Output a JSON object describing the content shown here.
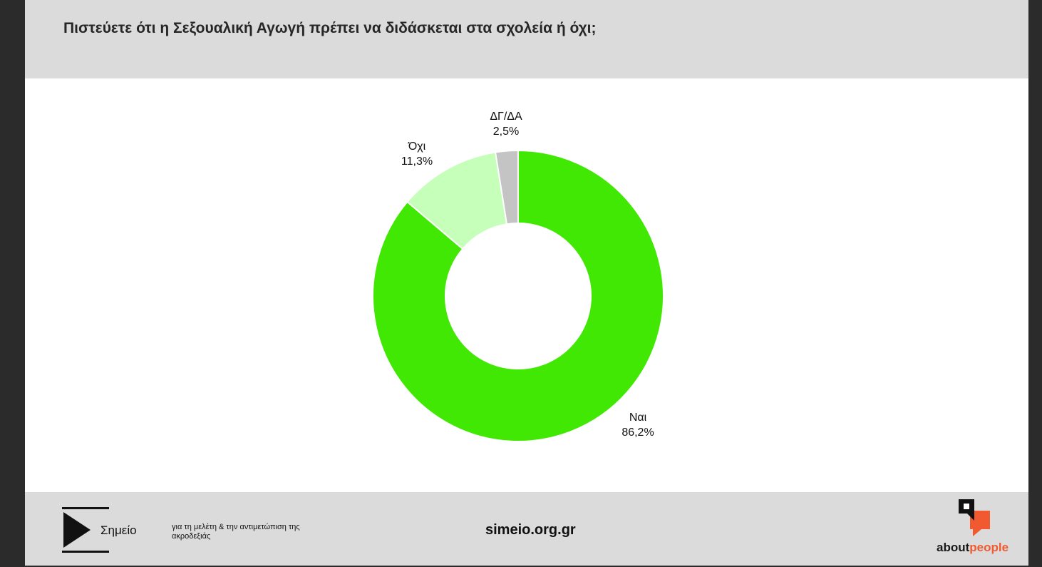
{
  "header": {
    "title": "Πιστεύετε ότι η Σεξουαλική Αγωγή πρέπει να διδάσκεται στα σχολεία ή όχι;"
  },
  "chart_data": {
    "type": "pie",
    "donut": true,
    "title": "Πιστεύετε ότι η Σεξουαλική Αγωγή πρέπει να διδάσκεται στα σχολεία ή όχι;",
    "slices": [
      {
        "label": "Ναι",
        "value": 86.2,
        "display": "86,2%",
        "color": "#41e804"
      },
      {
        "label": "Όχι",
        "value": 11.3,
        "display": "11,3%",
        "color": "#c6ffb9"
      },
      {
        "label": "ΔΓ/ΔΑ",
        "value": 2.5,
        "display": "2,5%",
        "color": "#c4c4c4"
      }
    ],
    "legend": "none"
  },
  "footer": {
    "logo_name": "Σημείο",
    "tagline": "για τη μελέτη & την αντιμετώπιση της ακροδεξιάς",
    "url": "simeio.org.gr",
    "brand_about": "about",
    "brand_people": "people",
    "colors": {
      "brand_accent": "#f15a31",
      "bar_bg": "#dcdbdc"
    }
  },
  "icons": {
    "left_logo": "play-triangle-icon",
    "right_logo": "speech-bubbles-icon"
  }
}
